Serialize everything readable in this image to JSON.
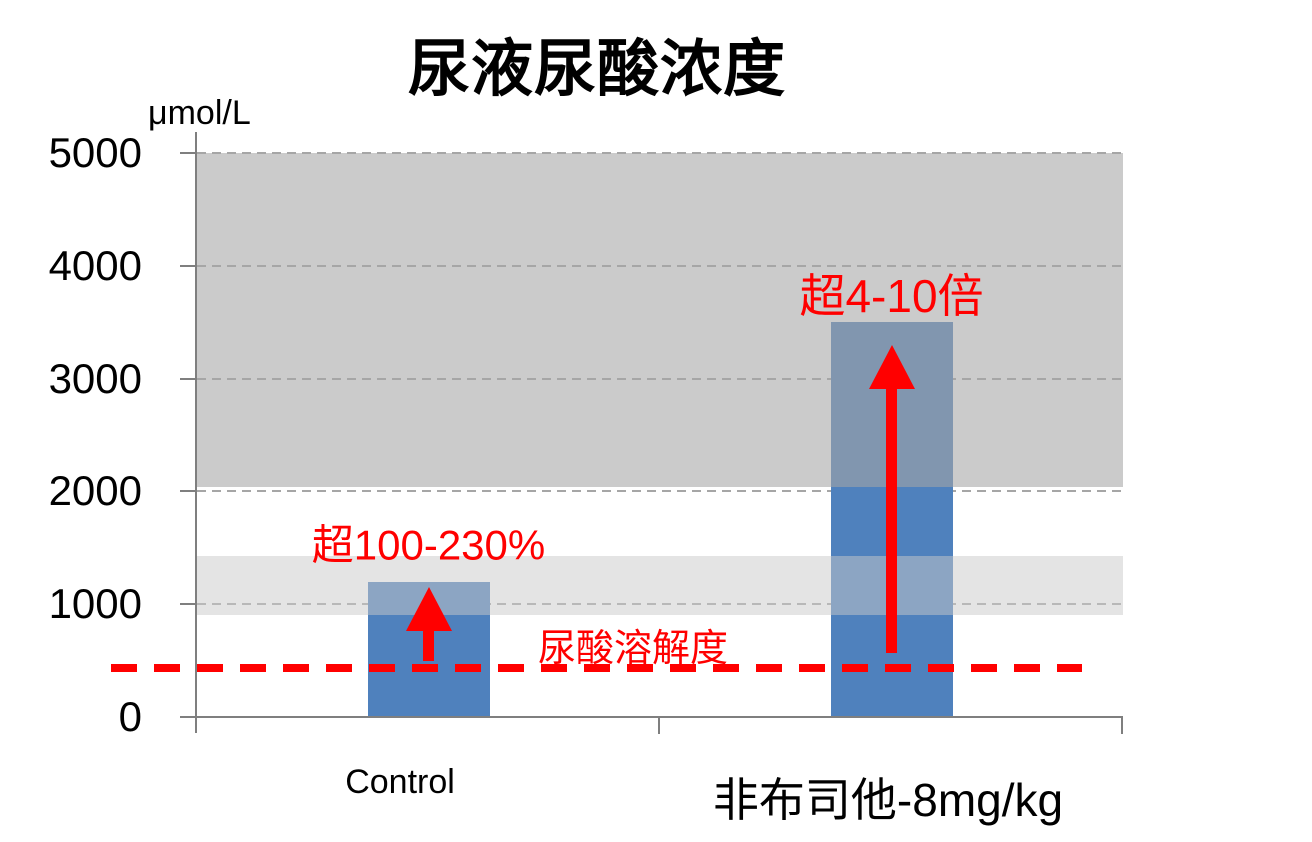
{
  "chart_data": {
    "type": "bar",
    "title": "尿液尿酸浓度",
    "ylabel": "μmol/L",
    "xlabel": "",
    "categories": [
      "Control",
      "非布司他-8mg/kg"
    ],
    "values": [
      1200,
      3500
    ],
    "ylim": [
      0,
      5000
    ],
    "yticks": [
      0,
      1000,
      2000,
      3000,
      4000,
      5000
    ],
    "grid": "horizontal-dashed",
    "legend": "none",
    "colors": {
      "bar": "#4F81BD",
      "bar_in_upper_band": "#8197B0",
      "bar_in_lower_band": "#8CA5C3",
      "upper_band": "#CBCBCB",
      "lower_band": "#E4E4E4",
      "gridline": "#A6A6A6",
      "axis": "#7F7F7F",
      "annotation_red": "#FF0000",
      "title_text": "#000000"
    },
    "reference_bands": [
      {
        "name": "upper-gray-band",
        "from": 2040,
        "to": 5000,
        "fill": "#CBCBCB"
      },
      {
        "name": "lower-gray-band",
        "from": 900,
        "to": 1430,
        "fill": "#E4E4E4"
      }
    ],
    "reference_line": {
      "label": "尿酸溶解度",
      "value": 430,
      "style": "dashed",
      "color": "#FF0000"
    },
    "annotations": [
      {
        "text": "超100-230%",
        "category_index": 0,
        "value": 1550,
        "color": "#FF0000"
      },
      {
        "text": "超4-10倍",
        "category_index": 1,
        "value": 3760,
        "color": "#FF0000"
      }
    ],
    "arrows": [
      {
        "category_index": 0,
        "from_value": 500,
        "to_value": 1150,
        "color": "#FF0000"
      },
      {
        "category_index": 1,
        "from_value": 570,
        "to_value": 3300,
        "color": "#FF0000"
      }
    ]
  }
}
